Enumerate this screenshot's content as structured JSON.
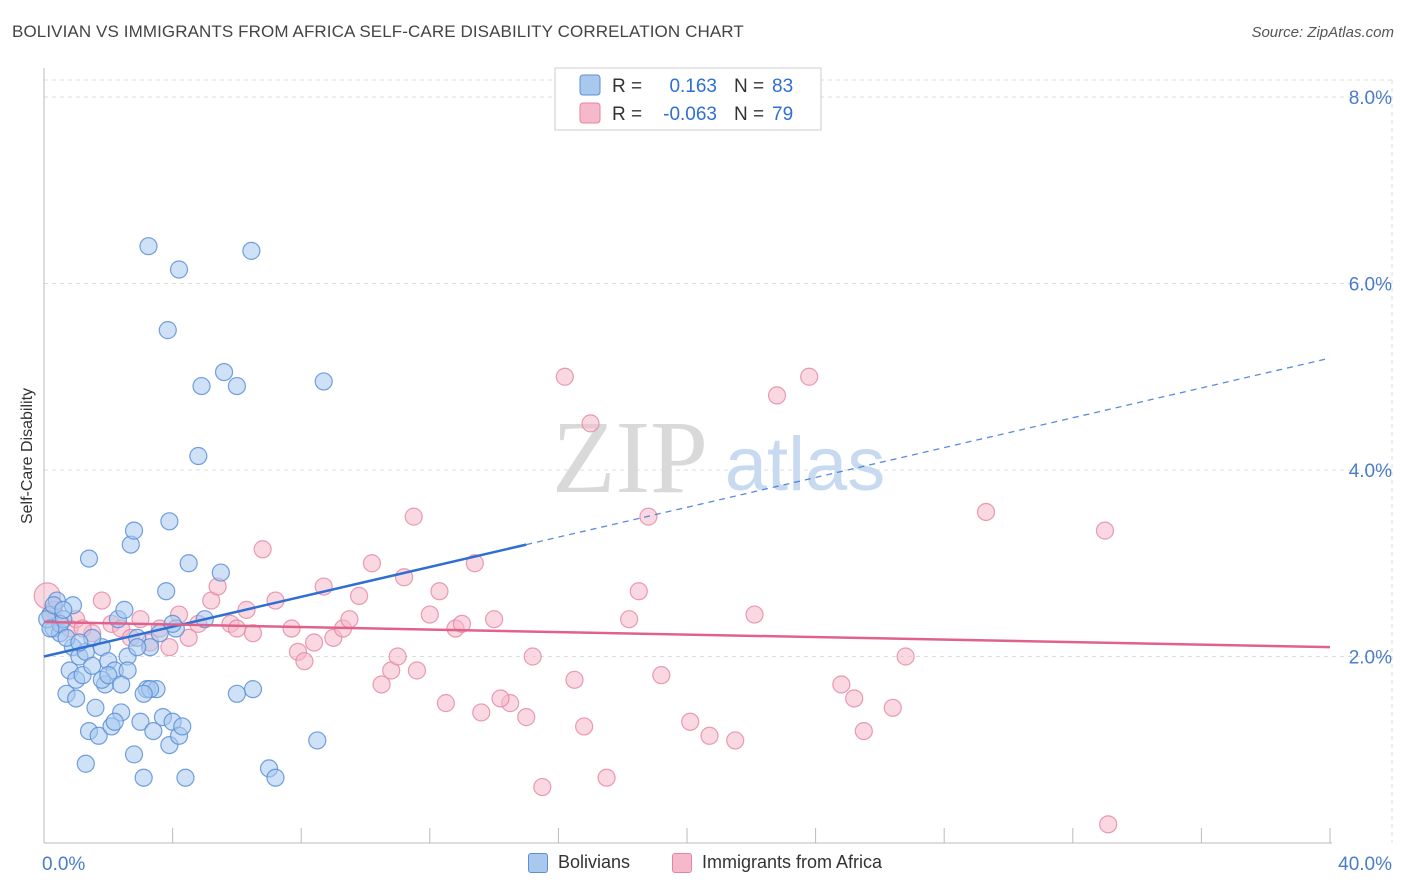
{
  "header": {
    "title": "BOLIVIAN VS IMMIGRANTS FROM AFRICA SELF-CARE DISABILITY CORRELATION CHART",
    "source": "Source: ZipAtlas.com"
  },
  "watermark": {
    "part1": "ZIP",
    "part2": "atlas"
  },
  "colors": {
    "blue_fill": "#a8c8ee",
    "blue_stroke": "#5b8fd6",
    "blue_line": "#2e6fd1",
    "pink_fill": "#f6b8cb",
    "pink_stroke": "#e585a3",
    "pink_line": "#e0628c",
    "tick_label": "#4a7cc9"
  },
  "legend": [
    {
      "r_label": "R =",
      "r_value": "0.163",
      "n_label": "N =",
      "n_value": "83"
    },
    {
      "r_label": "R =",
      "r_value": "-0.063",
      "n_label": "N =",
      "n_value": "79"
    }
  ],
  "chart_data": {
    "type": "scatter",
    "title": "BOLIVIAN VS IMMIGRANTS FROM AFRICA SELF-CARE DISABILITY CORRELATION CHART",
    "xlabel": "",
    "ylabel": "Self-Care Disability",
    "xlim": [
      0,
      40
    ],
    "ylim": [
      0,
      8.4
    ],
    "x_tick_labels": [
      "0.0%",
      "40.0%"
    ],
    "y_ticks": [
      2,
      4,
      6,
      8
    ],
    "y_tick_labels": [
      "2.0%",
      "4.0%",
      "6.0%",
      "8.0%"
    ],
    "grid": true,
    "legend_position": "top-center",
    "series": [
      {
        "name": "Bolivians",
        "color": "#a8c8ee",
        "trend": {
          "x0": 0,
          "y0": 2.0,
          "x1": 15,
          "y1": 3.2,
          "dashed_to_x": 40,
          "dashed_to_y": 5.2
        },
        "points": [
          [
            0.2,
            2.45
          ],
          [
            0.3,
            2.3
          ],
          [
            0.4,
            2.6
          ],
          [
            0.5,
            2.25
          ],
          [
            0.6,
            2.4
          ],
          [
            0.7,
            1.6
          ],
          [
            0.8,
            1.85
          ],
          [
            0.9,
            2.1
          ],
          [
            1.0,
            1.75
          ],
          [
            1.1,
            2.0
          ],
          [
            1.2,
            1.8
          ],
          [
            1.3,
            2.05
          ],
          [
            1.4,
            1.2
          ],
          [
            1.5,
            1.9
          ],
          [
            1.6,
            1.45
          ],
          [
            1.7,
            1.15
          ],
          [
            1.8,
            2.1
          ],
          [
            1.9,
            1.7
          ],
          [
            2.0,
            1.95
          ],
          [
            2.1,
            1.25
          ],
          [
            2.2,
            1.85
          ],
          [
            2.3,
            2.4
          ],
          [
            2.4,
            1.4
          ],
          [
            2.5,
            2.5
          ],
          [
            2.6,
            2.0
          ],
          [
            2.7,
            3.2
          ],
          [
            2.8,
            0.95
          ],
          [
            2.9,
            2.2
          ],
          [
            3.0,
            1.3
          ],
          [
            3.1,
            0.7
          ],
          [
            3.2,
            1.65
          ],
          [
            3.3,
            2.1
          ],
          [
            3.4,
            1.2
          ],
          [
            3.5,
            1.65
          ],
          [
            3.7,
            1.35
          ],
          [
            3.8,
            2.7
          ],
          [
            3.9,
            1.05
          ],
          [
            4.0,
            1.3
          ],
          [
            4.1,
            2.3
          ],
          [
            4.2,
            1.15
          ],
          [
            4.3,
            1.25
          ],
          [
            4.4,
            0.7
          ],
          [
            4.5,
            3.0
          ],
          [
            5.0,
            2.4
          ],
          [
            5.5,
            2.9
          ],
          [
            6.0,
            1.6
          ],
          [
            6.5,
            1.65
          ],
          [
            7.0,
            0.8
          ],
          [
            7.2,
            0.7
          ],
          [
            8.5,
            1.1
          ],
          [
            8.7,
            4.95
          ],
          [
            3.25,
            6.4
          ],
          [
            4.2,
            6.15
          ],
          [
            6.45,
            6.35
          ],
          [
            3.85,
            5.5
          ],
          [
            5.6,
            5.05
          ],
          [
            4.9,
            4.9
          ],
          [
            6.0,
            4.9
          ],
          [
            4.8,
            4.15
          ],
          [
            2.8,
            3.35
          ],
          [
            3.9,
            3.45
          ],
          [
            1.4,
            3.05
          ],
          [
            0.5,
            2.35
          ],
          [
            0.9,
            2.55
          ],
          [
            1.5,
            2.2
          ],
          [
            1.8,
            1.75
          ],
          [
            2.0,
            1.8
          ],
          [
            2.2,
            1.3
          ],
          [
            2.6,
            1.85
          ],
          [
            2.9,
            2.1
          ],
          [
            3.3,
            1.65
          ],
          [
            3.6,
            2.25
          ],
          [
            4.0,
            2.35
          ],
          [
            0.1,
            2.4
          ],
          [
            0.3,
            2.55
          ],
          [
            0.7,
            2.2
          ],
          [
            1.0,
            1.55
          ],
          [
            1.3,
            0.85
          ],
          [
            2.4,
            1.7
          ],
          [
            3.1,
            1.6
          ],
          [
            0.6,
            2.5
          ],
          [
            0.2,
            2.3
          ],
          [
            1.1,
            2.15
          ]
        ]
      },
      {
        "name": "Immigrants from Africa",
        "color": "#f6b8cb",
        "trend": {
          "x0": 0,
          "y0": 2.37,
          "x1": 40,
          "y1": 2.1
        },
        "points": [
          [
            0.1,
            2.65
          ],
          [
            0.2,
            2.45
          ],
          [
            0.3,
            2.5
          ],
          [
            0.5,
            2.35
          ],
          [
            0.8,
            2.3
          ],
          [
            1.0,
            2.4
          ],
          [
            1.5,
            2.25
          ],
          [
            1.8,
            2.6
          ],
          [
            2.1,
            2.35
          ],
          [
            2.4,
            2.3
          ],
          [
            2.7,
            2.2
          ],
          [
            3.0,
            2.4
          ],
          [
            3.3,
            2.15
          ],
          [
            3.6,
            2.3
          ],
          [
            4.2,
            2.45
          ],
          [
            4.5,
            2.2
          ],
          [
            4.8,
            2.35
          ],
          [
            5.2,
            2.6
          ],
          [
            5.4,
            2.75
          ],
          [
            5.8,
            2.35
          ],
          [
            6.3,
            2.5
          ],
          [
            6.5,
            2.25
          ],
          [
            6.8,
            3.15
          ],
          [
            7.2,
            2.6
          ],
          [
            7.7,
            2.3
          ],
          [
            7.9,
            2.05
          ],
          [
            8.1,
            1.95
          ],
          [
            8.4,
            2.15
          ],
          [
            8.7,
            2.75
          ],
          [
            9.0,
            2.2
          ],
          [
            9.3,
            2.3
          ],
          [
            9.5,
            2.4
          ],
          [
            9.8,
            2.65
          ],
          [
            10.2,
            3.0
          ],
          [
            10.5,
            1.7
          ],
          [
            10.8,
            1.85
          ],
          [
            11.0,
            2.0
          ],
          [
            11.2,
            2.85
          ],
          [
            11.6,
            1.85
          ],
          [
            12.0,
            2.45
          ],
          [
            12.3,
            2.7
          ],
          [
            12.5,
            1.5
          ],
          [
            12.8,
            2.3
          ],
          [
            13.0,
            2.35
          ],
          [
            13.4,
            3.0
          ],
          [
            13.6,
            1.4
          ],
          [
            14.0,
            2.4
          ],
          [
            14.5,
            1.5
          ],
          [
            15.0,
            1.35
          ],
          [
            15.2,
            2.0
          ],
          [
            15.5,
            0.6
          ],
          [
            16.2,
            5.0
          ],
          [
            16.5,
            1.75
          ],
          [
            16.8,
            1.25
          ],
          [
            17.0,
            4.5
          ],
          [
            17.5,
            0.7
          ],
          [
            18.2,
            2.4
          ],
          [
            18.5,
            2.7
          ],
          [
            18.8,
            3.5
          ],
          [
            19.2,
            1.8
          ],
          [
            20.1,
            1.3
          ],
          [
            20.7,
            1.15
          ],
          [
            21.5,
            1.1
          ],
          [
            22.1,
            2.45
          ],
          [
            22.8,
            4.8
          ],
          [
            23.8,
            5.0
          ],
          [
            24.8,
            1.7
          ],
          [
            25.2,
            1.55
          ],
          [
            25.5,
            1.2
          ],
          [
            26.4,
            1.45
          ],
          [
            26.8,
            2.0
          ],
          [
            29.3,
            3.55
          ],
          [
            33.0,
            3.35
          ],
          [
            33.1,
            0.2
          ],
          [
            11.5,
            3.5
          ],
          [
            14.2,
            1.55
          ],
          [
            6.0,
            2.3
          ],
          [
            3.9,
            2.1
          ],
          [
            1.2,
            2.3
          ]
        ]
      }
    ]
  },
  "bottom_legend": [
    {
      "label": "Bolivians"
    },
    {
      "label": "Immigrants from Africa"
    }
  ]
}
